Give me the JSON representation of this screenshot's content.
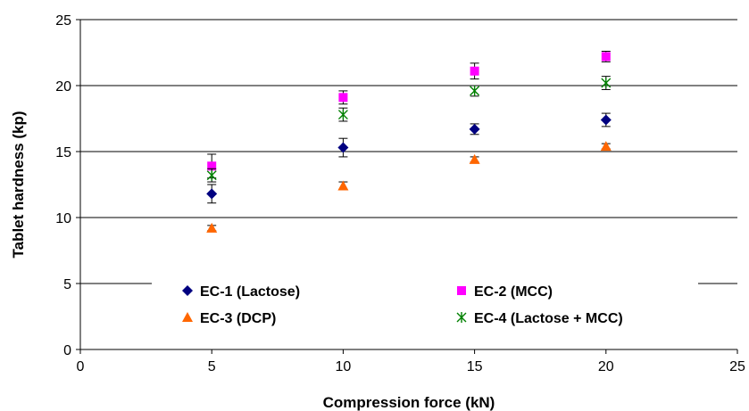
{
  "chart_data": {
    "type": "scatter",
    "title": "",
    "xlabel": "Compression force (kN)",
    "ylabel": "Tablet hardness (kp)",
    "xlim": [
      0,
      25
    ],
    "ylim": [
      0,
      25
    ],
    "x_ticks": [
      0,
      5,
      10,
      15,
      20,
      25
    ],
    "y_ticks": [
      0,
      5,
      10,
      15,
      20,
      25
    ],
    "grid": "horizontal major gridlines",
    "legend_position": "inside, bottom",
    "series": [
      {
        "name": "EC-1 (Lactose)",
        "marker": "diamond",
        "color": "#000080",
        "x": [
          5,
          10,
          15,
          20
        ],
        "y": [
          11.8,
          15.3,
          16.7,
          17.4
        ],
        "error": [
          0.7,
          0.7,
          0.4,
          0.5
        ]
      },
      {
        "name": "EC-2 (MCC)",
        "marker": "square",
        "color": "#FF00FF",
        "x": [
          5,
          10,
          15,
          20
        ],
        "y": [
          13.9,
          19.1,
          21.1,
          22.2
        ],
        "error": [
          0.9,
          0.5,
          0.6,
          0.4
        ]
      },
      {
        "name": "EC-3 (DCP)",
        "marker": "triangle",
        "color": "#FF6600",
        "x": [
          5,
          10,
          15,
          20
        ],
        "y": [
          9.2,
          12.4,
          14.4,
          15.4
        ],
        "error": [
          0.2,
          0.3,
          0.2,
          0.2
        ]
      },
      {
        "name": "EC-4 (Lactose + MCC)",
        "marker": "star",
        "color": "#008000",
        "x": [
          5,
          10,
          15,
          20
        ],
        "y": [
          13.2,
          17.8,
          19.6,
          20.2
        ],
        "error": [
          0.5,
          0.5,
          0.4,
          0.5
        ]
      }
    ]
  }
}
